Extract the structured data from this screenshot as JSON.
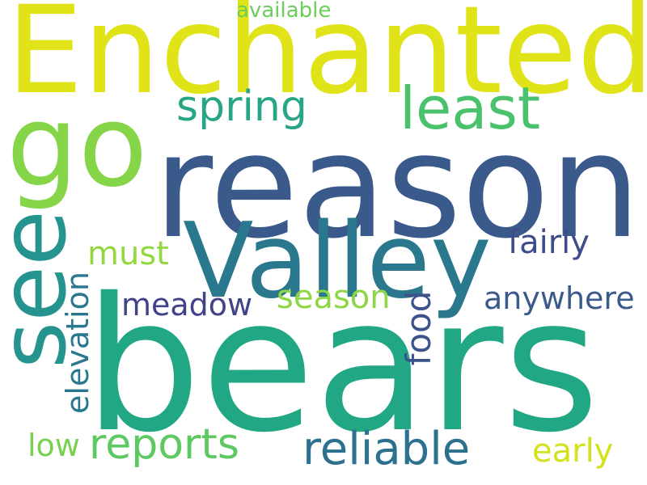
{
  "words": {
    "bears": {
      "text": "bears",
      "color": "#22a785"
    },
    "reason": {
      "text": "reason",
      "color": "#3b5a8c"
    },
    "enchanted": {
      "text": "Enchanted",
      "color": "#dfe318"
    },
    "go": {
      "text": "go",
      "color": "#86d549"
    },
    "valley": {
      "text": "Valley",
      "color": "#2a788e"
    },
    "see": {
      "text": "see",
      "color": "#26948e"
    },
    "spring": {
      "text": "spring",
      "color": "#27a586"
    },
    "least": {
      "text": "least",
      "color": "#4ac16d"
    },
    "fairly": {
      "text": "fairly",
      "color": "#3e4c8a"
    },
    "anywhere": {
      "text": "anywhere",
      "color": "#3b5a8c"
    },
    "must": {
      "text": "must",
      "color": "#93d741"
    },
    "meadow": {
      "text": "meadow",
      "color": "#404387"
    },
    "season": {
      "text": "season",
      "color": "#8ed645"
    },
    "reports": {
      "text": "reports",
      "color": "#5ec962"
    },
    "reliable": {
      "text": "reliable",
      "color": "#2c718e"
    },
    "low": {
      "text": "low",
      "color": "#7ad151"
    },
    "early": {
      "text": "early",
      "color": "#d2e21b"
    },
    "available": {
      "text": "available",
      "color": "#6ccd5a"
    },
    "elevation": {
      "text": "elevation",
      "color": "#2a788e"
    },
    "food": {
      "text": "food",
      "color": "#3b528b"
    }
  }
}
